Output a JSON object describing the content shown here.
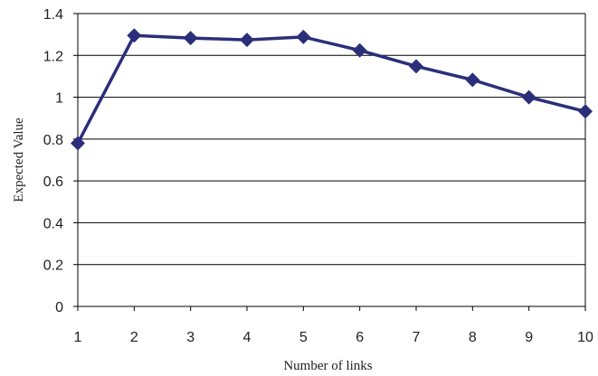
{
  "chart_data": {
    "type": "line",
    "title": "",
    "xlabel": "Number of links",
    "ylabel": "Expected Value",
    "x": [
      1,
      2,
      3,
      4,
      5,
      6,
      7,
      8,
      9,
      10
    ],
    "series": [
      {
        "values": [
          0.78,
          1.295,
          1.283,
          1.274,
          1.288,
          1.224,
          1.148,
          1.083,
          1.0,
          0.932
        ]
      }
    ],
    "x_ticks": [
      "1",
      "2",
      "3",
      "4",
      "5",
      "6",
      "7",
      "8",
      "9",
      "10"
    ],
    "y_ticks": [
      "0",
      "0.2",
      "0.4",
      "0.6",
      "0.8",
      "1",
      "1.2",
      "1.4"
    ],
    "ylim": [
      0,
      1.4
    ],
    "xlim": [
      1,
      10
    ],
    "grid": "horizontal",
    "legend": "none",
    "series_color": "#2b2f7a",
    "marker": "diamond"
  }
}
